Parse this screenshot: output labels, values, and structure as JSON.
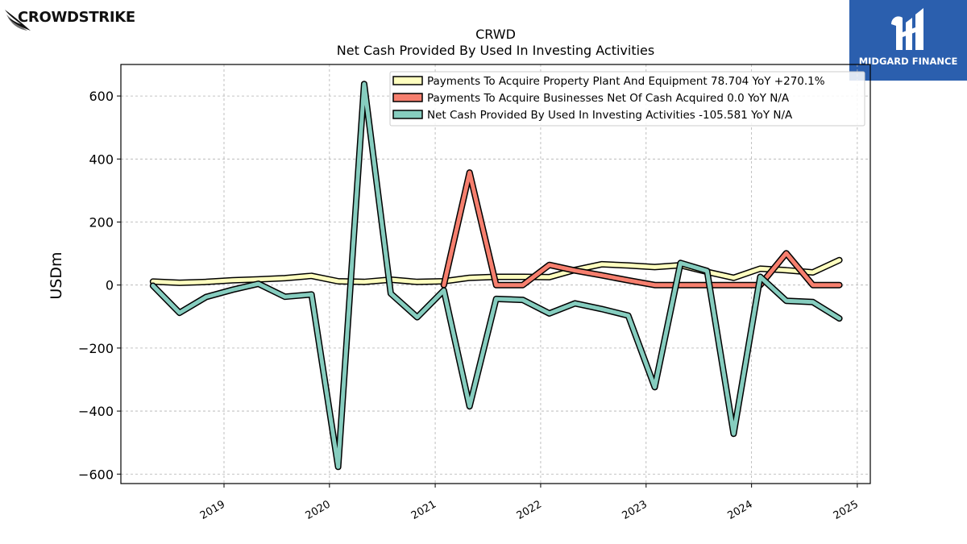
{
  "brand": {
    "left_logo": "CROWDSTRIKE",
    "right_logo": "MIDGARD FINANCE"
  },
  "colors": {
    "ppe": "#ffffbf",
    "acq": "#f67f6e",
    "net": "#86cdbf",
    "right_logo_bg": "#2b5fae"
  },
  "chart_data": {
    "type": "line",
    "title": "CRWD",
    "subtitle": "Net Cash Provided By Used In Investing Activities",
    "xlabel": "",
    "ylabel": "USDm",
    "ylim": [
      -630,
      700
    ],
    "yticks": [
      -600,
      -400,
      -200,
      0,
      200,
      400,
      600
    ],
    "ytick_labels": [
      "−600",
      "−400",
      "−200",
      "0",
      "200",
      "400",
      "600"
    ],
    "xlim": [
      "2018-01-09",
      "2025-02-15"
    ],
    "xticks": [
      "2019-01-01",
      "2020-01-01",
      "2021-01-01",
      "2022-01-01",
      "2023-01-01",
      "2024-01-01",
      "2025-01-01"
    ],
    "xtick_labels": [
      "2019",
      "2020",
      "2021",
      "2022",
      "2023",
      "2024",
      "2025"
    ],
    "grid": true,
    "legend_position": "top-right",
    "series": [
      {
        "name": "Payments To Acquire Property Plant And Equipment  78.704 YoY +270.1%",
        "color": "#ffffbf",
        "x": [
          "2018-04-30",
          "2018-07-31",
          "2018-10-31",
          "2019-01-31",
          "2019-04-30",
          "2019-07-31",
          "2019-10-31",
          "2020-01-31",
          "2020-04-30",
          "2020-07-31",
          "2020-10-31",
          "2021-01-31",
          "2021-04-30",
          "2021-07-31",
          "2021-10-31",
          "2022-01-31",
          "2022-04-30",
          "2022-07-31",
          "2022-10-31",
          "2023-01-31",
          "2023-04-30",
          "2023-07-31",
          "2023-10-31",
          "2024-01-31",
          "2024-04-30",
          "2024-07-31",
          "2024-10-31"
        ],
        "y": [
          11,
          7,
          10,
          15,
          18,
          22,
          29,
          12,
          10,
          17,
          10,
          12,
          23,
          26,
          26,
          25,
          48,
          66,
          62,
          57,
          63,
          42,
          23,
          52,
          47,
          40,
          79
        ]
      },
      {
        "name": "Payments To Acquire Businesses Net Of Cash Acquired  0.0 YoY N/A",
        "color": "#f67f6e",
        "x": [
          "2021-01-31",
          "2021-04-30",
          "2021-07-31",
          "2021-10-31",
          "2022-01-31",
          "2022-04-30",
          "2022-07-31",
          "2022-10-31",
          "2023-01-31",
          "2023-04-30",
          "2023-07-31",
          "2023-10-31",
          "2024-01-31",
          "2024-04-30",
          "2024-07-31",
          "2024-10-31"
        ],
        "y": [
          0,
          357,
          0,
          0,
          64,
          46,
          31,
          15,
          0,
          0,
          0,
          0,
          0,
          101,
          0,
          0
        ]
      },
      {
        "name": "Net Cash Provided By Used In Investing Activities  -105.581 YoY N/A",
        "color": "#86cdbf",
        "x": [
          "2018-04-30",
          "2018-07-31",
          "2018-10-31",
          "2019-01-31",
          "2019-04-30",
          "2019-07-31",
          "2019-10-31",
          "2020-01-31",
          "2020-04-30",
          "2020-07-31",
          "2020-10-31",
          "2021-01-31",
          "2021-04-30",
          "2021-07-31",
          "2021-10-31",
          "2022-01-31",
          "2022-04-30",
          "2022-07-31",
          "2022-10-31",
          "2023-01-31",
          "2023-04-30",
          "2023-07-31",
          "2023-10-31",
          "2024-01-31",
          "2024-04-30",
          "2024-07-31",
          "2024-10-31"
        ],
        "y": [
          -2,
          -88,
          -38,
          -15,
          4,
          -37,
          -30,
          -577,
          638,
          -27,
          -102,
          -17,
          -385,
          -44,
          -47,
          -90,
          -58,
          -76,
          -97,
          -324,
          70,
          45,
          -472,
          26,
          -50,
          -54,
          -106
        ]
      }
    ]
  }
}
